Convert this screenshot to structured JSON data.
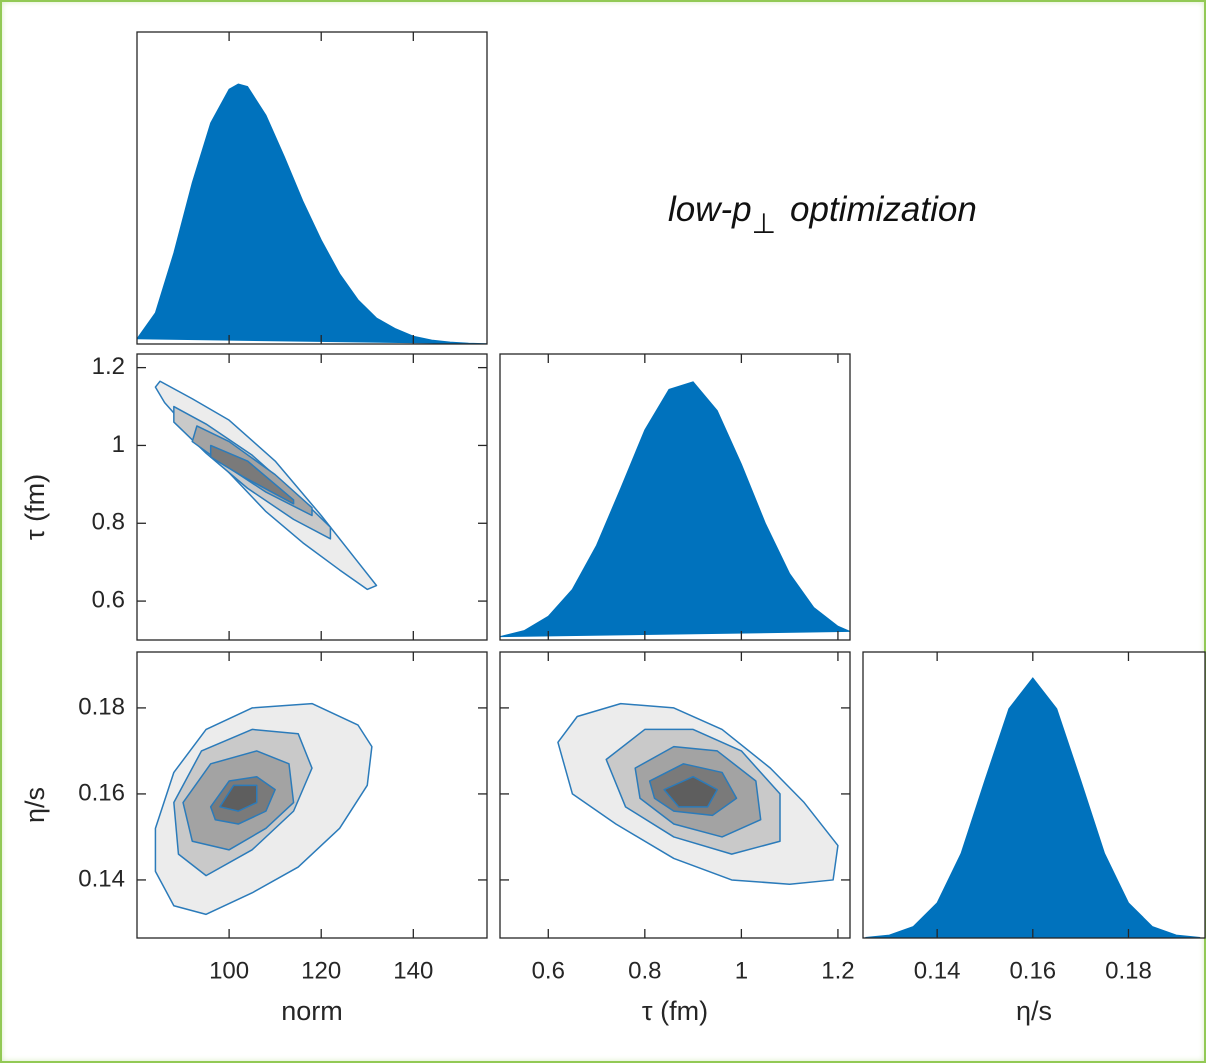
{
  "annotation": {
    "text": "low-p",
    "subscript": "⊥",
    "text_after": "optimization"
  },
  "chart_data": [
    {
      "type": "density",
      "color": "#0072bd",
      "xlim": [
        80,
        156
      ],
      "ylim": [
        0,
        1.2
      ],
      "xticks": [
        100,
        120,
        140
      ],
      "xtick_labels": false,
      "x": [
        80,
        84,
        88,
        92,
        96,
        100,
        102,
        104,
        108,
        112,
        116,
        120,
        124,
        128,
        132,
        136,
        140,
        144,
        148,
        152,
        156
      ],
      "values": [
        0.02,
        0.12,
        0.35,
        0.62,
        0.85,
        0.98,
        1.0,
        0.99,
        0.88,
        0.72,
        0.55,
        0.4,
        0.27,
        0.17,
        0.1,
        0.06,
        0.03,
        0.015,
        0.007,
        0.003,
        0.001
      ]
    },
    {
      "type": "contour",
      "line_color": "#2b7bba",
      "level_colors": [
        "#ececec",
        "#c9c9c9",
        "#a3a3a3",
        "#7a7a7a"
      ],
      "xlim": [
        80,
        156
      ],
      "ylim": [
        0.5,
        1.235
      ],
      "xticks": [
        100,
        120,
        140
      ],
      "yticks": [
        0.6,
        0.8,
        1,
        1.2
      ],
      "xtick_labels": false,
      "ytick_labels": true,
      "ylabel": "τ (fm)",
      "levels": [
        {
          "x": [
            85,
            92,
            100,
            110,
            120,
            128,
            132,
            130,
            124,
            116,
            108,
            100,
            92,
            86,
            84
          ],
          "y": [
            1.165,
            1.12,
            1.065,
            0.96,
            0.82,
            0.7,
            0.64,
            0.63,
            0.68,
            0.75,
            0.83,
            0.93,
            1.03,
            1.11,
            1.15
          ]
        },
        {
          "x": [
            88,
            95,
            105,
            115,
            122,
            122,
            114,
            104,
            95,
            88
          ],
          "y": [
            1.1,
            1.055,
            0.975,
            0.87,
            0.79,
            0.76,
            0.81,
            0.89,
            0.98,
            1.06
          ]
        },
        {
          "x": [
            93,
            100,
            110,
            118,
            118,
            108,
            99,
            92
          ],
          "y": [
            1.05,
            1.01,
            0.925,
            0.84,
            0.82,
            0.88,
            0.95,
            1.01
          ]
        },
        {
          "x": [
            96,
            104,
            114,
            114,
            103,
            96
          ],
          "y": [
            1.0,
            0.96,
            0.86,
            0.85,
            0.92,
            0.97
          ]
        }
      ]
    },
    {
      "type": "density",
      "color": "#0072bd",
      "xlim": [
        0.5,
        1.225
      ],
      "ylim": [
        0,
        1.1
      ],
      "xticks": [
        0.6,
        0.8,
        1,
        1.2
      ],
      "xtick_labels": false,
      "x": [
        0.5,
        0.55,
        0.6,
        0.65,
        0.7,
        0.75,
        0.8,
        0.85,
        0.9,
        0.95,
        1.0,
        1.05,
        1.1,
        1.15,
        1.2,
        1.225
      ],
      "values": [
        0.013,
        0.036,
        0.091,
        0.195,
        0.364,
        0.583,
        0.808,
        0.964,
        0.993,
        0.882,
        0.676,
        0.447,
        0.255,
        0.125,
        0.053,
        0.033
      ]
    },
    {
      "type": "contour",
      "line_color": "#2b7bba",
      "level_colors": [
        "#ececec",
        "#c9c9c9",
        "#a3a3a3",
        "#7a7a7a",
        "#5e5e5e"
      ],
      "xlim": [
        80,
        156
      ],
      "ylim": [
        0.1265,
        0.193
      ],
      "xticks": [
        100,
        120,
        140
      ],
      "yticks": [
        0.14,
        0.16,
        0.18
      ],
      "xtick_labels": true,
      "ytick_labels": true,
      "xlabel": "norm",
      "ylabel": "η/s",
      "levels": [
        {
          "x": [
            84,
            88,
            95,
            105,
            118,
            128,
            131,
            130,
            124,
            115,
            105,
            95,
            88,
            84
          ],
          "y": [
            0.152,
            0.165,
            0.175,
            0.18,
            0.181,
            0.176,
            0.171,
            0.162,
            0.152,
            0.143,
            0.137,
            0.132,
            0.134,
            0.142
          ]
        },
        {
          "x": [
            88,
            94,
            105,
            115,
            118,
            114,
            105,
            95,
            89
          ],
          "y": [
            0.158,
            0.17,
            0.175,
            0.174,
            0.166,
            0.156,
            0.147,
            0.141,
            0.146
          ]
        },
        {
          "x": [
            90,
            96,
            106,
            113,
            114,
            108,
            100,
            92
          ],
          "y": [
            0.158,
            0.167,
            0.17,
            0.167,
            0.158,
            0.152,
            0.147,
            0.149
          ]
        },
        {
          "x": [
            96,
            100,
            106,
            110,
            108,
            102,
            97
          ],
          "y": [
            0.157,
            0.163,
            0.164,
            0.161,
            0.156,
            0.153,
            0.154
          ]
        },
        {
          "x": [
            98,
            101,
            106,
            106,
            102
          ],
          "y": [
            0.157,
            0.162,
            0.162,
            0.158,
            0.156
          ]
        }
      ]
    },
    {
      "type": "contour",
      "line_color": "#2b7bba",
      "level_colors": [
        "#ececec",
        "#c9c9c9",
        "#a3a3a3",
        "#7a7a7a",
        "#5e5e5e"
      ],
      "xlim": [
        0.5,
        1.225
      ],
      "ylim": [
        0.1265,
        0.193
      ],
      "xticks": [
        0.6,
        0.8,
        1,
        1.2
      ],
      "yticks": [
        0.14,
        0.16,
        0.18
      ],
      "xtick_labels": true,
      "ytick_labels": false,
      "xlabel": "τ (fm)",
      "levels": [
        {
          "x": [
            0.62,
            0.66,
            0.75,
            0.86,
            0.96,
            1.06,
            1.13,
            1.2,
            1.19,
            1.1,
            0.98,
            0.86,
            0.74,
            0.65
          ],
          "y": [
            0.172,
            0.178,
            0.181,
            0.18,
            0.175,
            0.166,
            0.158,
            0.148,
            0.14,
            0.139,
            0.14,
            0.145,
            0.153,
            0.16
          ]
        },
        {
          "x": [
            0.72,
            0.8,
            0.9,
            1.0,
            1.08,
            1.08,
            0.98,
            0.86,
            0.76
          ],
          "y": [
            0.168,
            0.175,
            0.175,
            0.17,
            0.16,
            0.149,
            0.146,
            0.15,
            0.157
          ]
        },
        {
          "x": [
            0.78,
            0.86,
            0.95,
            1.03,
            1.04,
            0.96,
            0.86,
            0.79
          ],
          "y": [
            0.166,
            0.171,
            0.17,
            0.163,
            0.154,
            0.15,
            0.153,
            0.159
          ]
        },
        {
          "x": [
            0.81,
            0.88,
            0.96,
            0.99,
            0.94,
            0.86,
            0.82
          ],
          "y": [
            0.163,
            0.167,
            0.165,
            0.159,
            0.155,
            0.156,
            0.159
          ]
        },
        {
          "x": [
            0.84,
            0.9,
            0.95,
            0.93,
            0.87
          ],
          "y": [
            0.161,
            0.164,
            0.161,
            0.157,
            0.157
          ]
        }
      ]
    },
    {
      "type": "density",
      "color": "#0072bd",
      "xlim": [
        0.1245,
        0.196
      ],
      "ylim": [
        0,
        1.1
      ],
      "xticks": [
        0.14,
        0.16,
        0.18
      ],
      "xtick_labels": true,
      "xlabel": "η/s",
      "x": [
        0.125,
        0.13,
        0.135,
        0.14,
        0.145,
        0.15,
        0.155,
        0.16,
        0.165,
        0.17,
        0.175,
        0.18,
        0.185,
        0.19,
        0.195
      ],
      "values": [
        0.002,
        0.011,
        0.044,
        0.135,
        0.325,
        0.607,
        0.882,
        1.0,
        0.882,
        0.607,
        0.325,
        0.135,
        0.044,
        0.011,
        0.002
      ]
    }
  ]
}
